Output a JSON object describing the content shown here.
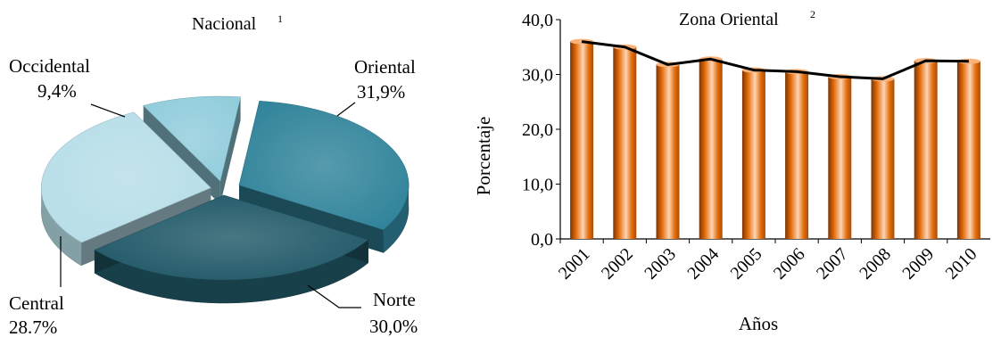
{
  "chart_data": [
    {
      "type": "pie",
      "title": "Nacional",
      "title_superscript": "1",
      "categories": [
        "Oriental",
        "Norte",
        "Central",
        "Occidental"
      ],
      "values": [
        31.9,
        30.0,
        28.7,
        9.4
      ],
      "value_labels": [
        "31,9%",
        "30,0%",
        "28.7%",
        "9,4%"
      ],
      "colors": [
        "#31849b",
        "#215968",
        "#b7dee8",
        "#92cddc"
      ],
      "style": "3d-exploded"
    },
    {
      "type": "bar",
      "title": "Zona Oriental",
      "title_superscript": "2",
      "categories": [
        "2001",
        "2002",
        "2003",
        "2004",
        "2005",
        "2006",
        "2007",
        "2008",
        "2009",
        "2010"
      ],
      "series": [
        {
          "values": [
            36.0,
            35.0,
            31.8,
            32.8,
            30.8,
            30.5,
            29.6,
            29.2,
            32.5,
            32.4
          ],
          "color": "#e46c0a",
          "render": "bars"
        },
        {
          "values": [
            36.0,
            35.0,
            31.8,
            32.8,
            30.8,
            30.5,
            29.6,
            29.2,
            32.5,
            32.4
          ],
          "color": "#000000",
          "render": "line"
        }
      ],
      "ylim": [
        0,
        40
      ],
      "yticks": [
        "0,0",
        "10,0",
        "20,0",
        "30,0",
        "40,0"
      ],
      "xlabel": "Años",
      "ylabel": "Porcentaje",
      "grid": false,
      "legend": "none"
    }
  ]
}
